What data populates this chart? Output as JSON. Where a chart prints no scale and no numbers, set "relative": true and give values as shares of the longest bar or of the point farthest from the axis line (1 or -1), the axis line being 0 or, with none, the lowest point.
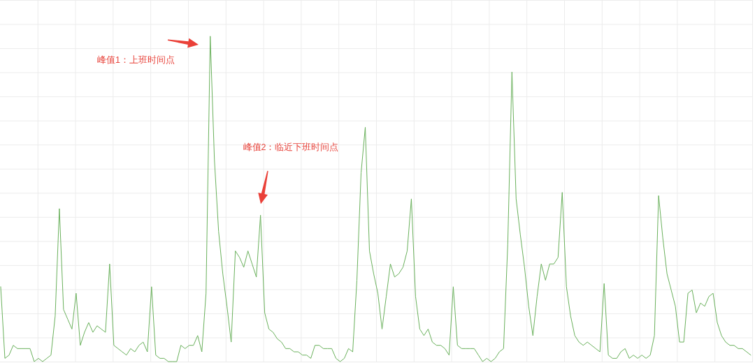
{
  "chart_data": {
    "type": "line",
    "relative": true,
    "grid": true,
    "color": "#6ab15c",
    "categories": [
      null,
      null,
      null,
      null,
      null,
      null,
      null,
      null,
      null,
      null,
      null,
      null,
      null,
      null,
      null,
      null,
      null,
      null,
      null,
      null,
      null,
      null,
      null,
      null,
      null,
      null,
      null,
      null,
      null,
      null,
      null,
      null,
      null,
      null,
      null,
      null,
      null,
      null,
      null,
      null,
      null,
      null,
      null,
      null,
      null,
      null,
      null,
      null,
      null,
      null,
      null,
      null,
      null,
      null,
      null,
      null,
      null,
      null,
      null,
      null,
      null,
      null,
      null,
      null,
      null,
      null,
      null,
      null,
      null,
      null,
      null,
      null,
      null,
      null,
      null,
      null,
      null,
      null,
      null,
      null,
      null,
      null,
      null,
      null,
      null,
      null,
      null,
      null,
      null,
      null,
      null,
      null,
      null,
      null,
      null,
      null,
      null,
      null,
      null,
      null,
      null,
      null,
      null,
      null,
      null,
      null,
      null,
      null,
      null,
      null,
      null,
      null,
      null,
      null,
      null,
      null,
      null,
      null,
      null,
      null,
      null,
      null,
      null,
      null,
      null,
      null,
      null,
      null,
      null,
      null,
      null,
      null,
      null,
      null,
      null,
      null,
      null,
      null,
      null,
      null,
      null,
      null,
      null,
      null,
      null,
      null,
      null,
      null,
      null,
      null,
      null,
      null,
      null,
      null,
      null,
      null,
      null,
      null,
      null,
      null,
      null,
      null,
      null,
      null,
      null,
      null,
      null,
      null,
      null,
      null,
      null,
      null,
      null,
      null,
      null,
      null,
      null,
      null,
      null,
      null
    ],
    "values": [
      0.23,
      0.01,
      0.02,
      0.05,
      0.04,
      0.04,
      0.04,
      0.04,
      0,
      0.01,
      0,
      0.01,
      0.02,
      0.14,
      0.47,
      0.16,
      0.13,
      0.1,
      0.21,
      0.05,
      0.09,
      0.12,
      0.09,
      0.11,
      0.1,
      0.09,
      0.3,
      0.05,
      0.04,
      0.03,
      0.02,
      0.04,
      0.03,
      0.05,
      0.06,
      0.03,
      0.23,
      0.02,
      0.01,
      0.01,
      0,
      0,
      0,
      0.05,
      0.04,
      0.05,
      0.05,
      0.08,
      0.03,
      0.21,
      1.0,
      0.62,
      0.4,
      0.27,
      0.17,
      0.06,
      0.34,
      0.32,
      0.29,
      0.34,
      0.3,
      0.26,
      0.45,
      0.15,
      0.1,
      0.09,
      0.07,
      0.06,
      0.04,
      0.04,
      0.03,
      0.03,
      0.02,
      0.02,
      0.01,
      0.05,
      0.05,
      0.04,
      0.04,
      0.04,
      0.01,
      0,
      0.01,
      0.04,
      0.03,
      0.25,
      0.58,
      0.72,
      0.34,
      0.27,
      0.21,
      0.1,
      0.2,
      0.3,
      0.26,
      0.27,
      0.29,
      0.34,
      0.5,
      0.2,
      0.1,
      0.08,
      0.1,
      0.06,
      0.05,
      0.05,
      0.04,
      0.02,
      0.23,
      0.05,
      0.04,
      0.04,
      0.04,
      0.04,
      0.02,
      0,
      0.01,
      0,
      0.01,
      0.03,
      0.04,
      0.36,
      0.89,
      0.5,
      0.39,
      0.29,
      0.17,
      0.08,
      0.2,
      0.3,
      0.25,
      0.3,
      0.3,
      0.32,
      0.52,
      0.23,
      0.14,
      0.08,
      0.06,
      0.05,
      0.06,
      0.05,
      0.04,
      0.03,
      0.24,
      0.02,
      0.01,
      0.01,
      0.03,
      0.04,
      0.01,
      0.02,
      0.01,
      0.02,
      0.01,
      0.02,
      0.08,
      0.51,
      0.38,
      0.27,
      0.22,
      0.17,
      0.06,
      0.06,
      0.21,
      0.22,
      0.15,
      0.18,
      0.17,
      0.2,
      0.21,
      0.12,
      0.08,
      0.06,
      0.05,
      0.05,
      0.04,
      0.04,
      0.03,
      0.02
    ],
    "annotations": [
      "峰值1：上班时间点",
      "峰值2：临近下班时间点"
    ]
  }
}
